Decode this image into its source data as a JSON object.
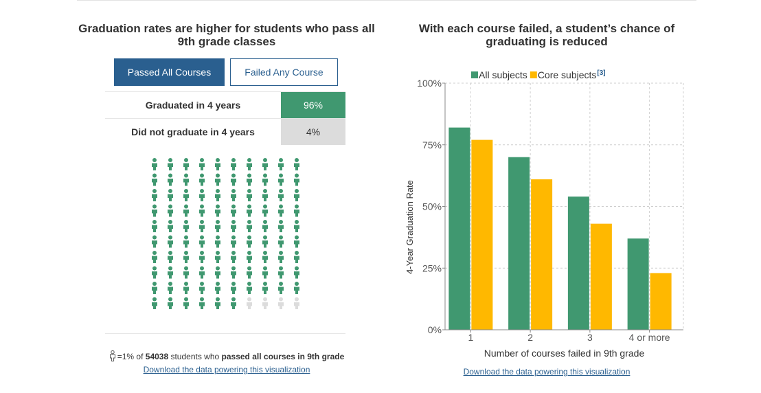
{
  "left": {
    "title": "Graduation rates are higher for students who pass all 9th grade classes",
    "buttons": {
      "passed": "Passed All Courses",
      "failed": "Failed Any Course"
    },
    "outcomes": [
      {
        "label": "Graduated in 4 years",
        "value": "96%"
      },
      {
        "label": "Did not graduate in 4 years",
        "value": "4%"
      }
    ],
    "pictogram": {
      "total": 100,
      "graduated": 96,
      "colors": {
        "graduated": "#409870",
        "not_graduated": "#dcdcdc"
      }
    },
    "note": {
      "prefix": "=1% of ",
      "count": "54038",
      "middle": " students who ",
      "emphasis": "passed all courses in 9th grade"
    },
    "download_link": "Download the data powering this visualization"
  },
  "right": {
    "title": "With each course failed, a student’s chance of graduating is reduced",
    "download_link": "Download the data powering this visualization"
  },
  "chart_data": {
    "type": "bar",
    "categories": [
      "1",
      "2",
      "3",
      "4 or more"
    ],
    "series": [
      {
        "name": "All subjects",
        "values": [
          82,
          70,
          54,
          37
        ],
        "color": "#409870"
      },
      {
        "name": "Core subjects",
        "values": [
          77,
          61,
          43,
          23
        ],
        "color": "#ffb800"
      }
    ],
    "legend_footnote": "[3]",
    "xlabel": "Number of courses failed in 9th grade",
    "ylabel": "4-Year Graduation Rate",
    "ylim": [
      0,
      100
    ],
    "yticks": [
      "0%",
      "25%",
      "50%",
      "75%",
      "100%"
    ],
    "ytick_values": [
      0,
      25,
      50,
      75,
      100
    ],
    "grid": true,
    "legend_position": "top"
  }
}
